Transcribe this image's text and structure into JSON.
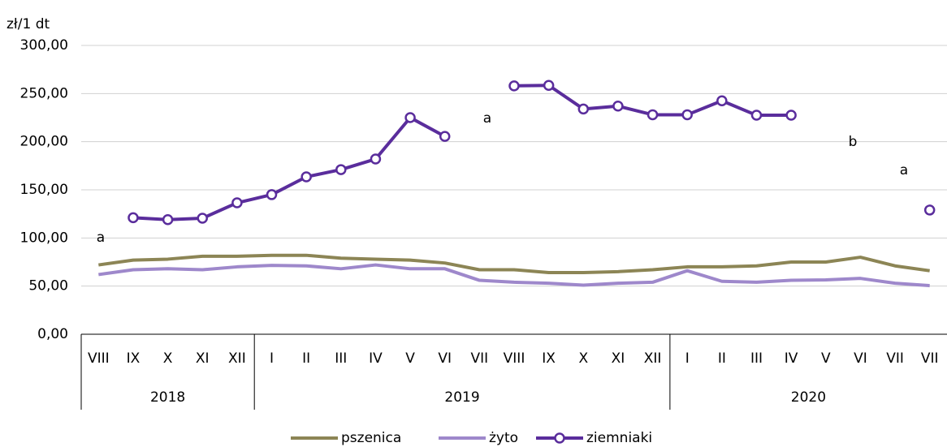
{
  "chart_data": {
    "type": "line",
    "y_label": "zł/1 dt",
    "categories": [
      "VIII",
      "IX",
      "X",
      "XI",
      "XII",
      "I",
      "II",
      "III",
      "IV",
      "V",
      "VI",
      "VII",
      "VIII",
      "IX",
      "X",
      "XI",
      "XII",
      "I",
      "II",
      "III",
      "IV",
      "V",
      "VI",
      "VII",
      "VII"
    ],
    "category_groups": [
      {
        "name": "2018",
        "count": 5
      },
      {
        "name": "2019",
        "count": 12
      },
      {
        "name": "2020",
        "count": 8
      }
    ],
    "series": [
      {
        "name": "pszenica",
        "color": "#8c8555",
        "markers": false,
        "values": [
          72,
          77,
          78,
          81,
          81,
          82,
          82,
          79,
          78,
          77,
          74,
          67,
          67,
          64,
          64,
          65,
          67,
          70,
          70,
          71,
          75,
          75,
          80,
          71,
          66
        ]
      },
      {
        "name": "żyto",
        "color": "#9e88cb",
        "markers": false,
        "values": [
          62,
          67,
          68,
          67,
          70,
          71.5,
          71,
          68,
          72,
          68,
          68,
          56,
          54,
          53,
          51,
          53,
          54,
          66,
          55,
          54,
          56,
          56.5,
          58,
          53,
          50.5
        ]
      },
      {
        "name": "ziemniaki",
        "color": "#5a2d9c",
        "markers": true,
        "values": [
          null,
          121,
          119,
          120.5,
          136.5,
          145,
          163.5,
          171,
          182,
          225,
          205.5,
          null,
          258,
          258.5,
          234,
          237,
          228,
          228,
          242.5,
          227.5,
          227.5,
          null,
          null,
          null,
          129
        ]
      }
    ],
    "annotations": [
      "a",
      "a",
      "b",
      "a"
    ],
    "ylim": [
      0,
      300
    ],
    "yticks": [
      {
        "value": 0,
        "label": "0,00"
      },
      {
        "value": 50,
        "label": "50,00"
      },
      {
        "value": 100,
        "label": "100,00"
      },
      {
        "value": 150,
        "label": "150,00"
      },
      {
        "value": 200,
        "label": "200,00"
      },
      {
        "value": 250,
        "label": "250,00"
      },
      {
        "value": 300,
        "label": "300,00"
      }
    ],
    "grid": true
  }
}
